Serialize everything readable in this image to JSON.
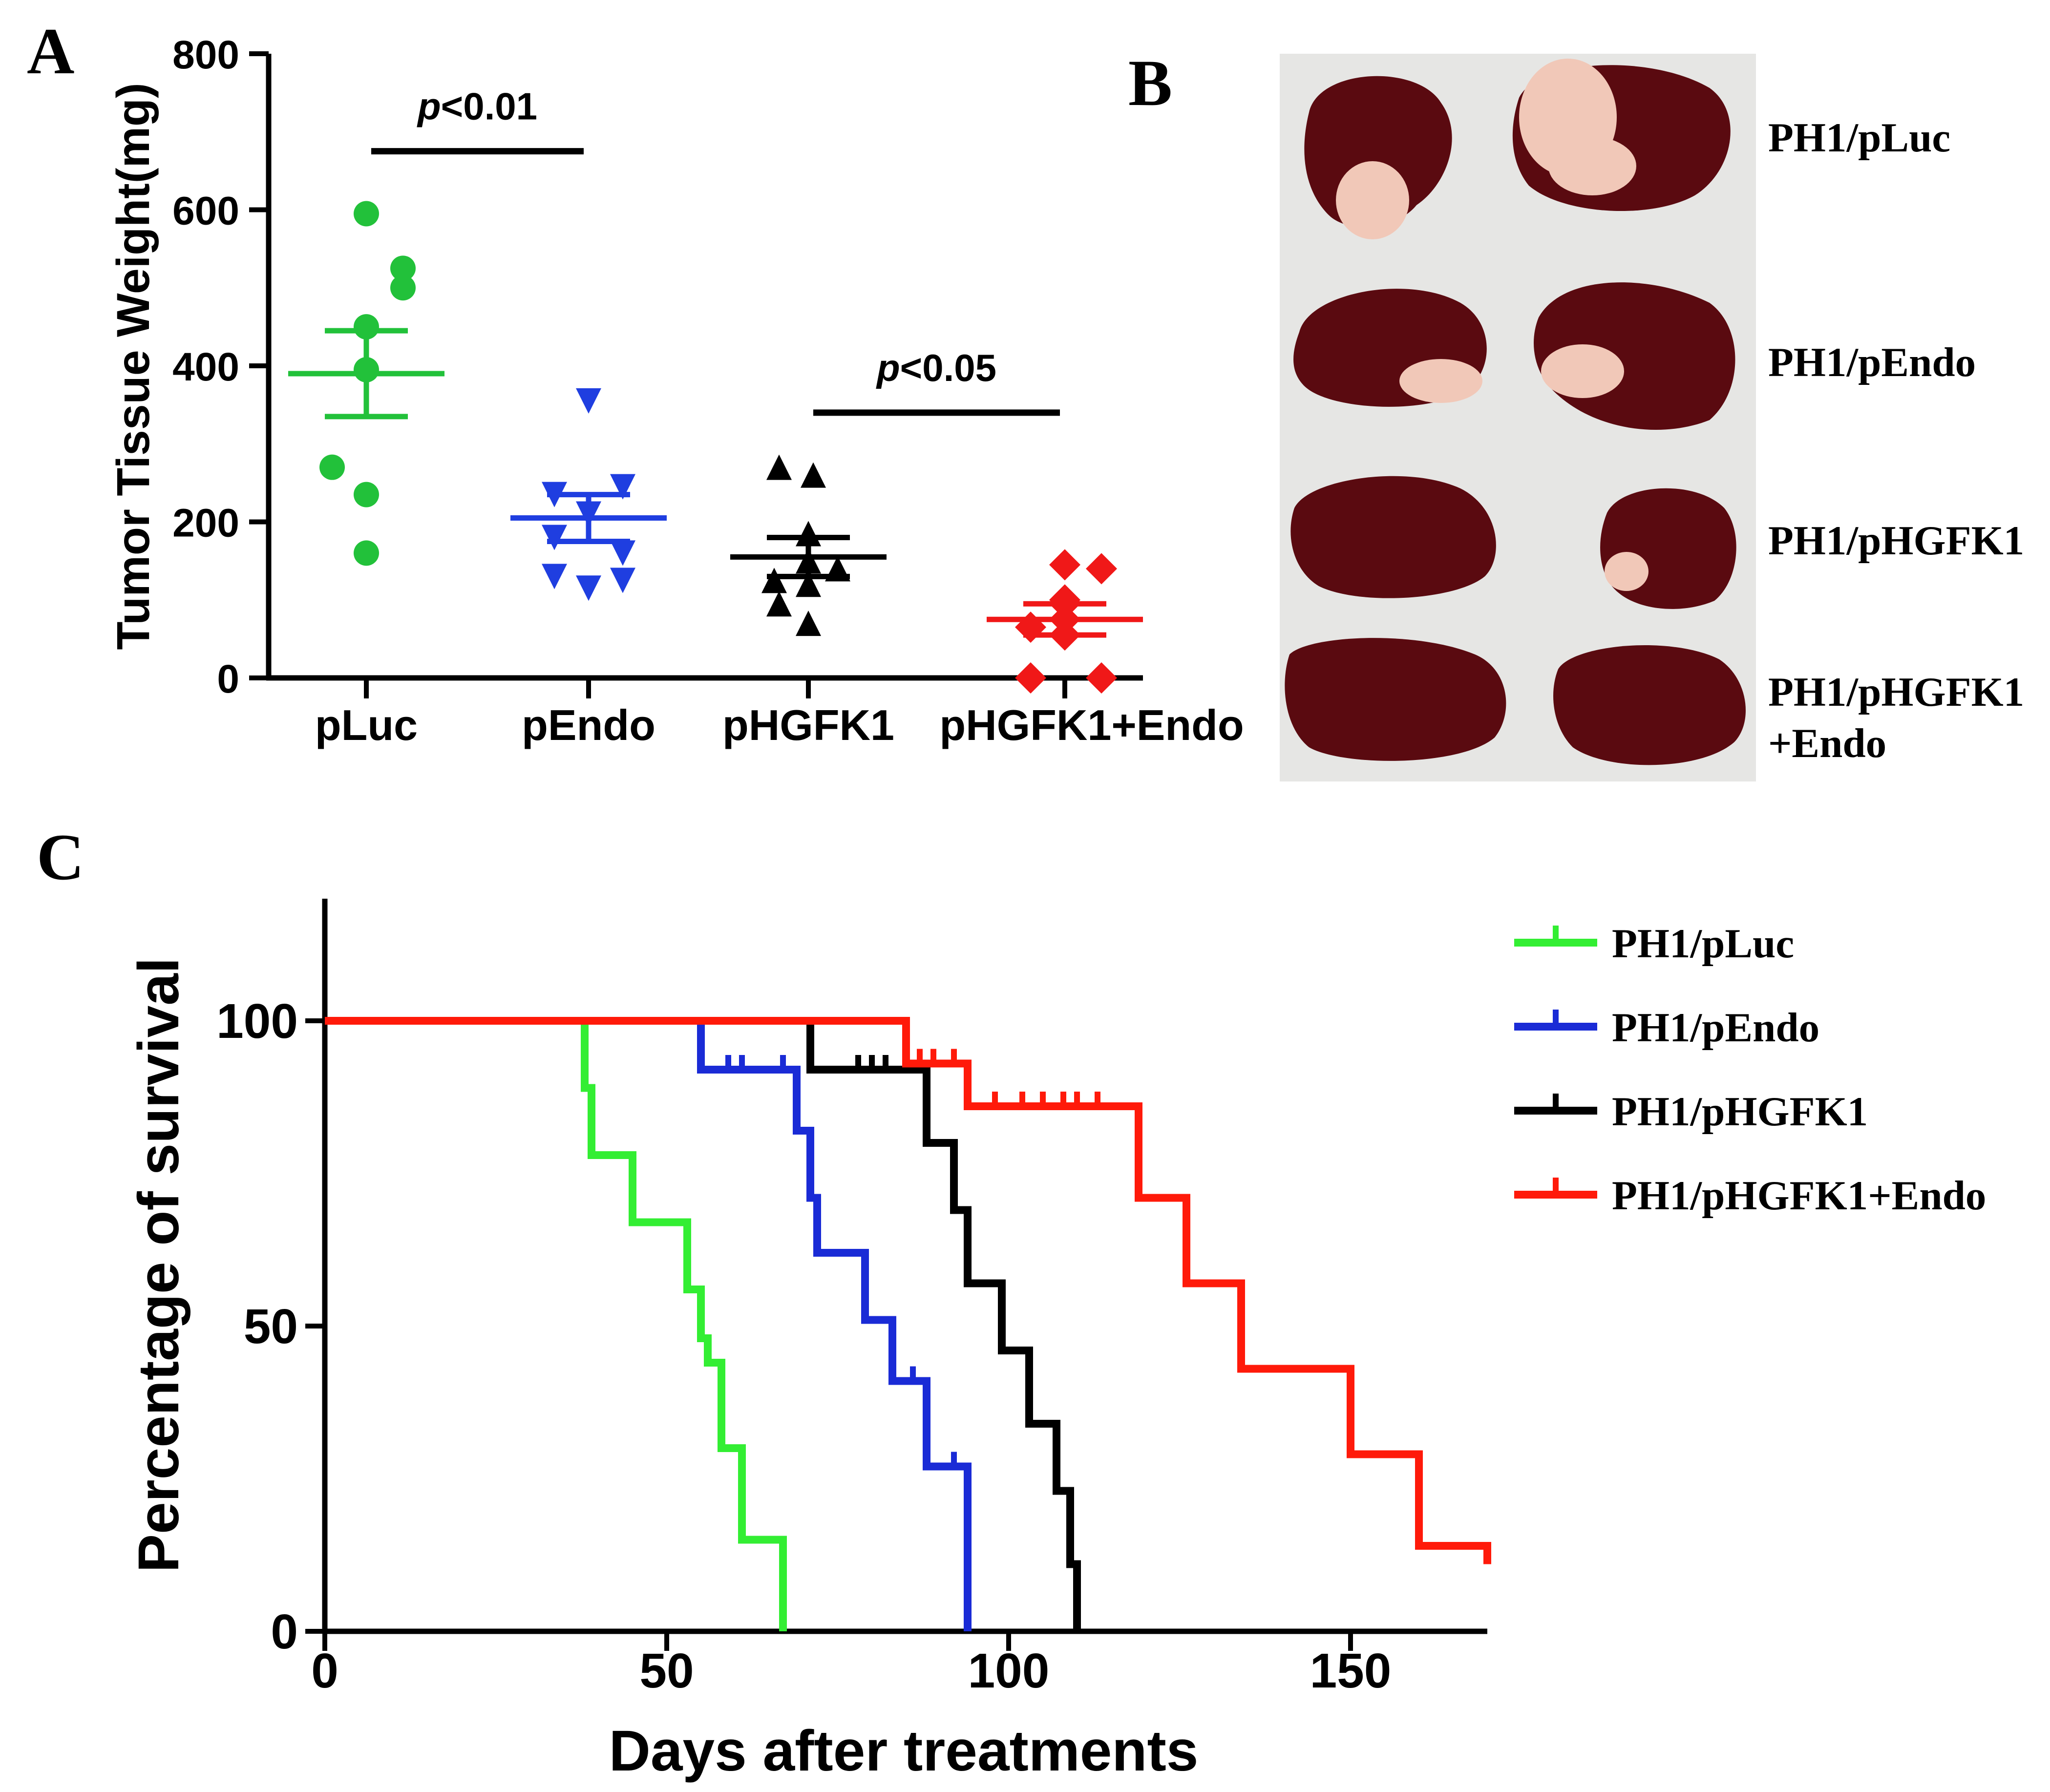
{
  "panel_labels": {
    "a": "A",
    "b": "B",
    "c": "C"
  },
  "colors": {
    "pLuc": "#22c13a",
    "pEndo": "#1f3ee0",
    "pHGFK1": "#000000",
    "pHGFK1_Endo": "#f01818",
    "survival_pLuc": "#33ee33",
    "survival_pEndo": "#1a2bd6",
    "survival_pHGFK1": "#000000",
    "survival_pHGFK1_Endo": "#ff1a0a"
  },
  "panel_b": {
    "photo_description": "excised livers (2 per group)",
    "labels": [
      {
        "line1": "PH1/pLuc",
        "line2": ""
      },
      {
        "line1": "PH1/pEndo",
        "line2": ""
      },
      {
        "line1": "PH1/pHGFK1",
        "line2": ""
      },
      {
        "line1": "PH1/pHGFK1",
        "line2": "+Endo"
      }
    ]
  },
  "chart_data": [
    {
      "type": "scatter",
      "panel": "A",
      "ylabel": "Tumor Tissue Weight(mg)",
      "xlabel": "",
      "ylim": [
        0,
        800
      ],
      "yticks": [
        0,
        200,
        400,
        600,
        800
      ],
      "categories": [
        "pLuc",
        "pEndo",
        "pHGFK1",
        "pHGFK1+Endo"
      ],
      "markers": [
        "circle",
        "triangle-down",
        "triangle-up",
        "diamond"
      ],
      "series": [
        {
          "name": "pLuc",
          "values": [
            595,
            525,
            500,
            450,
            395,
            270,
            235,
            160
          ],
          "mean": 390,
          "sem_low": 335,
          "sem_high": 445
        },
        {
          "name": "pEndo",
          "values": [
            355,
            245,
            235,
            210,
            180,
            160,
            130,
            125,
            115
          ],
          "mean": 205,
          "sem_low": 175,
          "sem_high": 235
        },
        {
          "name": "pHGFK1",
          "values": [
            270,
            260,
            185,
            150,
            140,
            125,
            120,
            95,
            70
          ],
          "mean": 155,
          "sem_low": 130,
          "sem_high": 180
        },
        {
          "name": "pHGFK1+Endo",
          "values": [
            145,
            140,
            100,
            95,
            75,
            65,
            55,
            0,
            0
          ],
          "mean": 75,
          "sem_low": 55,
          "sem_high": 95
        }
      ],
      "significance": [
        {
          "label_prefix": "p",
          "label_suffix": "<0.01",
          "from": "pLuc",
          "to": "pEndo",
          "y": 670
        },
        {
          "label_prefix": "p",
          "label_suffix": "<0.05",
          "from": "pHGFK1",
          "to": "pHGFK1+Endo",
          "y": 335
        }
      ]
    },
    {
      "type": "line",
      "panel": "C",
      "subtype": "kaplan-meier",
      "xlabel": "Days after treatments",
      "ylabel": "Percentage of survival",
      "xlim": [
        0,
        170
      ],
      "ylim": [
        0,
        120
      ],
      "xticks": [
        0,
        50,
        100,
        150
      ],
      "yticks": [
        0,
        50,
        100
      ],
      "legend_position": "top-right",
      "series": [
        {
          "name": "PH1/pLuc",
          "steps": [
            [
              0,
              100
            ],
            [
              38,
              100
            ],
            [
              38,
              89
            ],
            [
              39,
              89
            ],
            [
              39,
              78
            ],
            [
              45,
              78
            ],
            [
              45,
              67
            ],
            [
              53,
              67
            ],
            [
              53,
              56
            ],
            [
              55,
              56
            ],
            [
              55,
              48
            ],
            [
              56,
              48
            ],
            [
              56,
              44
            ],
            [
              58,
              44
            ],
            [
              58,
              30
            ],
            [
              61,
              30
            ],
            [
              61,
              15
            ],
            [
              67,
              15
            ],
            [
              67,
              0
            ]
          ],
          "censored": []
        },
        {
          "name": "PH1/pEndo",
          "steps": [
            [
              0,
              100
            ],
            [
              55,
              100
            ],
            [
              55,
              92
            ],
            [
              69,
              92
            ],
            [
              69,
              82
            ],
            [
              71,
              82
            ],
            [
              71,
              71
            ],
            [
              72,
              71
            ],
            [
              72,
              62
            ],
            [
              79,
              62
            ],
            [
              79,
              51
            ],
            [
              83,
              51
            ],
            [
              83,
              41
            ],
            [
              88,
              41
            ],
            [
              88,
              27
            ],
            [
              94,
              27
            ],
            [
              94,
              0
            ]
          ],
          "censored": [
            [
              59,
              92
            ],
            [
              61,
              92
            ],
            [
              67,
              92
            ],
            [
              86,
              41
            ],
            [
              92,
              27
            ]
          ]
        },
        {
          "name": "PH1/pHGFK1",
          "steps": [
            [
              0,
              100
            ],
            [
              71,
              100
            ],
            [
              71,
              92
            ],
            [
              88,
              92
            ],
            [
              88,
              80
            ],
            [
              92,
              80
            ],
            [
              92,
              69
            ],
            [
              94,
              69
            ],
            [
              94,
              57
            ],
            [
              99,
              57
            ],
            [
              99,
              46
            ],
            [
              103,
              46
            ],
            [
              103,
              34
            ],
            [
              107,
              34
            ],
            [
              107,
              23
            ],
            [
              109,
              23
            ],
            [
              109,
              11
            ],
            [
              110,
              11
            ],
            [
              110,
              0
            ]
          ],
          "censored": [
            [
              78,
              92
            ],
            [
              80,
              92
            ],
            [
              82,
              92
            ]
          ]
        },
        {
          "name": "PH1/pHGFK1+Endo",
          "steps": [
            [
              0,
              100
            ],
            [
              85,
              100
            ],
            [
              85,
              93
            ],
            [
              94,
              93
            ],
            [
              94,
              86
            ],
            [
              119,
              86
            ],
            [
              119,
              71
            ],
            [
              126,
              71
            ],
            [
              126,
              57
            ],
            [
              134,
              57
            ],
            [
              134,
              43
            ],
            [
              150,
              43
            ],
            [
              150,
              29
            ],
            [
              160,
              29
            ],
            [
              160,
              14
            ],
            [
              170,
              14
            ],
            [
              170,
              11
            ]
          ],
          "censored": [
            [
              87,
              93
            ],
            [
              89,
              93
            ],
            [
              92,
              93
            ],
            [
              98,
              86
            ],
            [
              102,
              86
            ],
            [
              105,
              86
            ],
            [
              108,
              86
            ],
            [
              110,
              86
            ],
            [
              113,
              86
            ]
          ]
        }
      ]
    }
  ]
}
